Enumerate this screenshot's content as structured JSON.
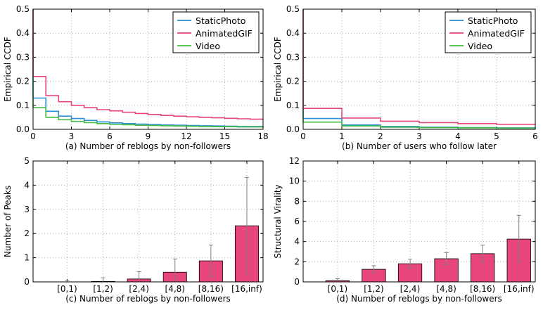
{
  "chart_data": [
    {
      "id": "a",
      "type": "line",
      "title": "",
      "xlabel": "(a) Number of reblogs by non-followers",
      "ylabel": "Empirical CCDF",
      "xlim": [
        0,
        18
      ],
      "ylim": [
        0,
        0.5
      ],
      "xticks": [
        0,
        3,
        6,
        9,
        12,
        15,
        18
      ],
      "xtick_labels": [
        "0",
        "3",
        "6",
        "9",
        "12",
        "15",
        "18"
      ],
      "yticks": [
        0,
        0.1,
        0.2,
        0.3,
        0.4,
        0.5
      ],
      "ytick_labels": [
        "0.0",
        "0.1",
        "0.2",
        "0.3",
        "0.4",
        "0.5"
      ],
      "grid": true,
      "legend_position": "top-right",
      "series": [
        {
          "name": "StaticPhoto",
          "color": "#2b8fd1",
          "x": [
            0,
            1,
            2,
            3,
            4,
            5,
            6,
            7,
            8,
            9,
            10,
            11,
            12,
            13,
            14,
            15,
            16,
            17,
            18
          ],
          "values": [
            0.13,
            0.075,
            0.055,
            0.045,
            0.037,
            0.031,
            0.027,
            0.024,
            0.022,
            0.02,
            0.018,
            0.017,
            0.016,
            0.015,
            0.014,
            0.013,
            0.012,
            0.012,
            0.011
          ]
        },
        {
          "name": "AnimatedGIF",
          "color": "#e8457a",
          "x": [
            0,
            1,
            2,
            3,
            4,
            5,
            6,
            7,
            8,
            9,
            10,
            11,
            12,
            13,
            14,
            15,
            16,
            17,
            18
          ],
          "values": [
            0.22,
            0.14,
            0.115,
            0.1,
            0.09,
            0.082,
            0.077,
            0.071,
            0.066,
            0.062,
            0.058,
            0.055,
            0.052,
            0.05,
            0.048,
            0.046,
            0.044,
            0.042,
            0.041
          ]
        },
        {
          "name": "Video",
          "color": "#44bb44",
          "x": [
            0,
            1,
            2,
            3,
            4,
            5,
            6,
            7,
            8,
            9,
            10,
            11,
            12,
            13,
            14,
            15,
            16,
            17,
            18
          ],
          "values": [
            0.09,
            0.05,
            0.04,
            0.033,
            0.028,
            0.024,
            0.021,
            0.019,
            0.017,
            0.016,
            0.015,
            0.014,
            0.013,
            0.012,
            0.011,
            0.011,
            0.01,
            0.01,
            0.009
          ]
        }
      ]
    },
    {
      "id": "b",
      "type": "line",
      "title": "",
      "xlabel": "(b) Number of users who follow later",
      "ylabel": "Empirical CCDF",
      "xlim": [
        0,
        6
      ],
      "ylim": [
        0,
        0.5
      ],
      "xticks": [
        0,
        1,
        2,
        3,
        4,
        5,
        6
      ],
      "xtick_labels": [
        "0",
        "1",
        "2",
        "3",
        "4",
        "5",
        "6"
      ],
      "yticks": [
        0,
        0.1,
        0.2,
        0.3,
        0.4,
        0.5
      ],
      "ytick_labels": [
        "0.0",
        "0.1",
        "0.2",
        "0.3",
        "0.4",
        "0.5"
      ],
      "grid": true,
      "legend_position": "top-right",
      "series": [
        {
          "name": "StaticPhoto",
          "color": "#2b8fd1",
          "x": [
            0,
            1,
            2,
            3,
            4,
            5,
            6
          ],
          "values": [
            0.045,
            0.018,
            0.012,
            0.009,
            0.007,
            0.006,
            0.005
          ]
        },
        {
          "name": "AnimatedGIF",
          "color": "#e8457a",
          "x": [
            0,
            1,
            2,
            3,
            4,
            5,
            6
          ],
          "values": [
            0.087,
            0.047,
            0.034,
            0.028,
            0.024,
            0.021,
            0.019
          ]
        },
        {
          "name": "Video",
          "color": "#44bb44",
          "x": [
            0,
            1,
            2,
            3,
            4,
            5,
            6
          ],
          "values": [
            0.03,
            0.014,
            0.009,
            0.007,
            0.006,
            0.005,
            0.004
          ]
        }
      ]
    },
    {
      "id": "c",
      "type": "bar",
      "title": "",
      "xlabel": "(c) Number of reblogs by non-followers",
      "ylabel": "Number of Peaks",
      "categories": [
        "[0,1)",
        "[1,2)",
        "[2,4)",
        "[4,8)",
        "[8,16)",
        "[16,inf)"
      ],
      "values": [
        0.0,
        0.02,
        0.12,
        0.4,
        0.87,
        2.32
      ],
      "error": [
        0.05,
        0.15,
        0.3,
        0.55,
        0.65,
        2.0
      ],
      "ylim": [
        0,
        5
      ],
      "yticks": [
        0,
        1,
        2,
        3,
        4,
        5
      ],
      "ytick_labels": [
        "0",
        "1",
        "2",
        "3",
        "4",
        "5"
      ],
      "grid": true,
      "bar_color": "#e8457a"
    },
    {
      "id": "d",
      "type": "bar",
      "title": "",
      "xlabel": "(d) Number of reblogs by non-followers",
      "ylabel": "Structural Virality",
      "categories": [
        "[0,1)",
        "[1,2)",
        "[2,4)",
        "[4,8)",
        "[8,16)",
        "[16,inf)"
      ],
      "values": [
        0.12,
        1.25,
        1.8,
        2.3,
        2.8,
        4.25
      ],
      "error": [
        0.2,
        0.35,
        0.45,
        0.6,
        0.85,
        2.35
      ],
      "ylim": [
        0,
        12
      ],
      "yticks": [
        0,
        2,
        4,
        6,
        8,
        10,
        12
      ],
      "ytick_labels": [
        "0",
        "2",
        "4",
        "6",
        "8",
        "10",
        "12"
      ],
      "grid": true,
      "bar_color": "#e8457a"
    }
  ]
}
